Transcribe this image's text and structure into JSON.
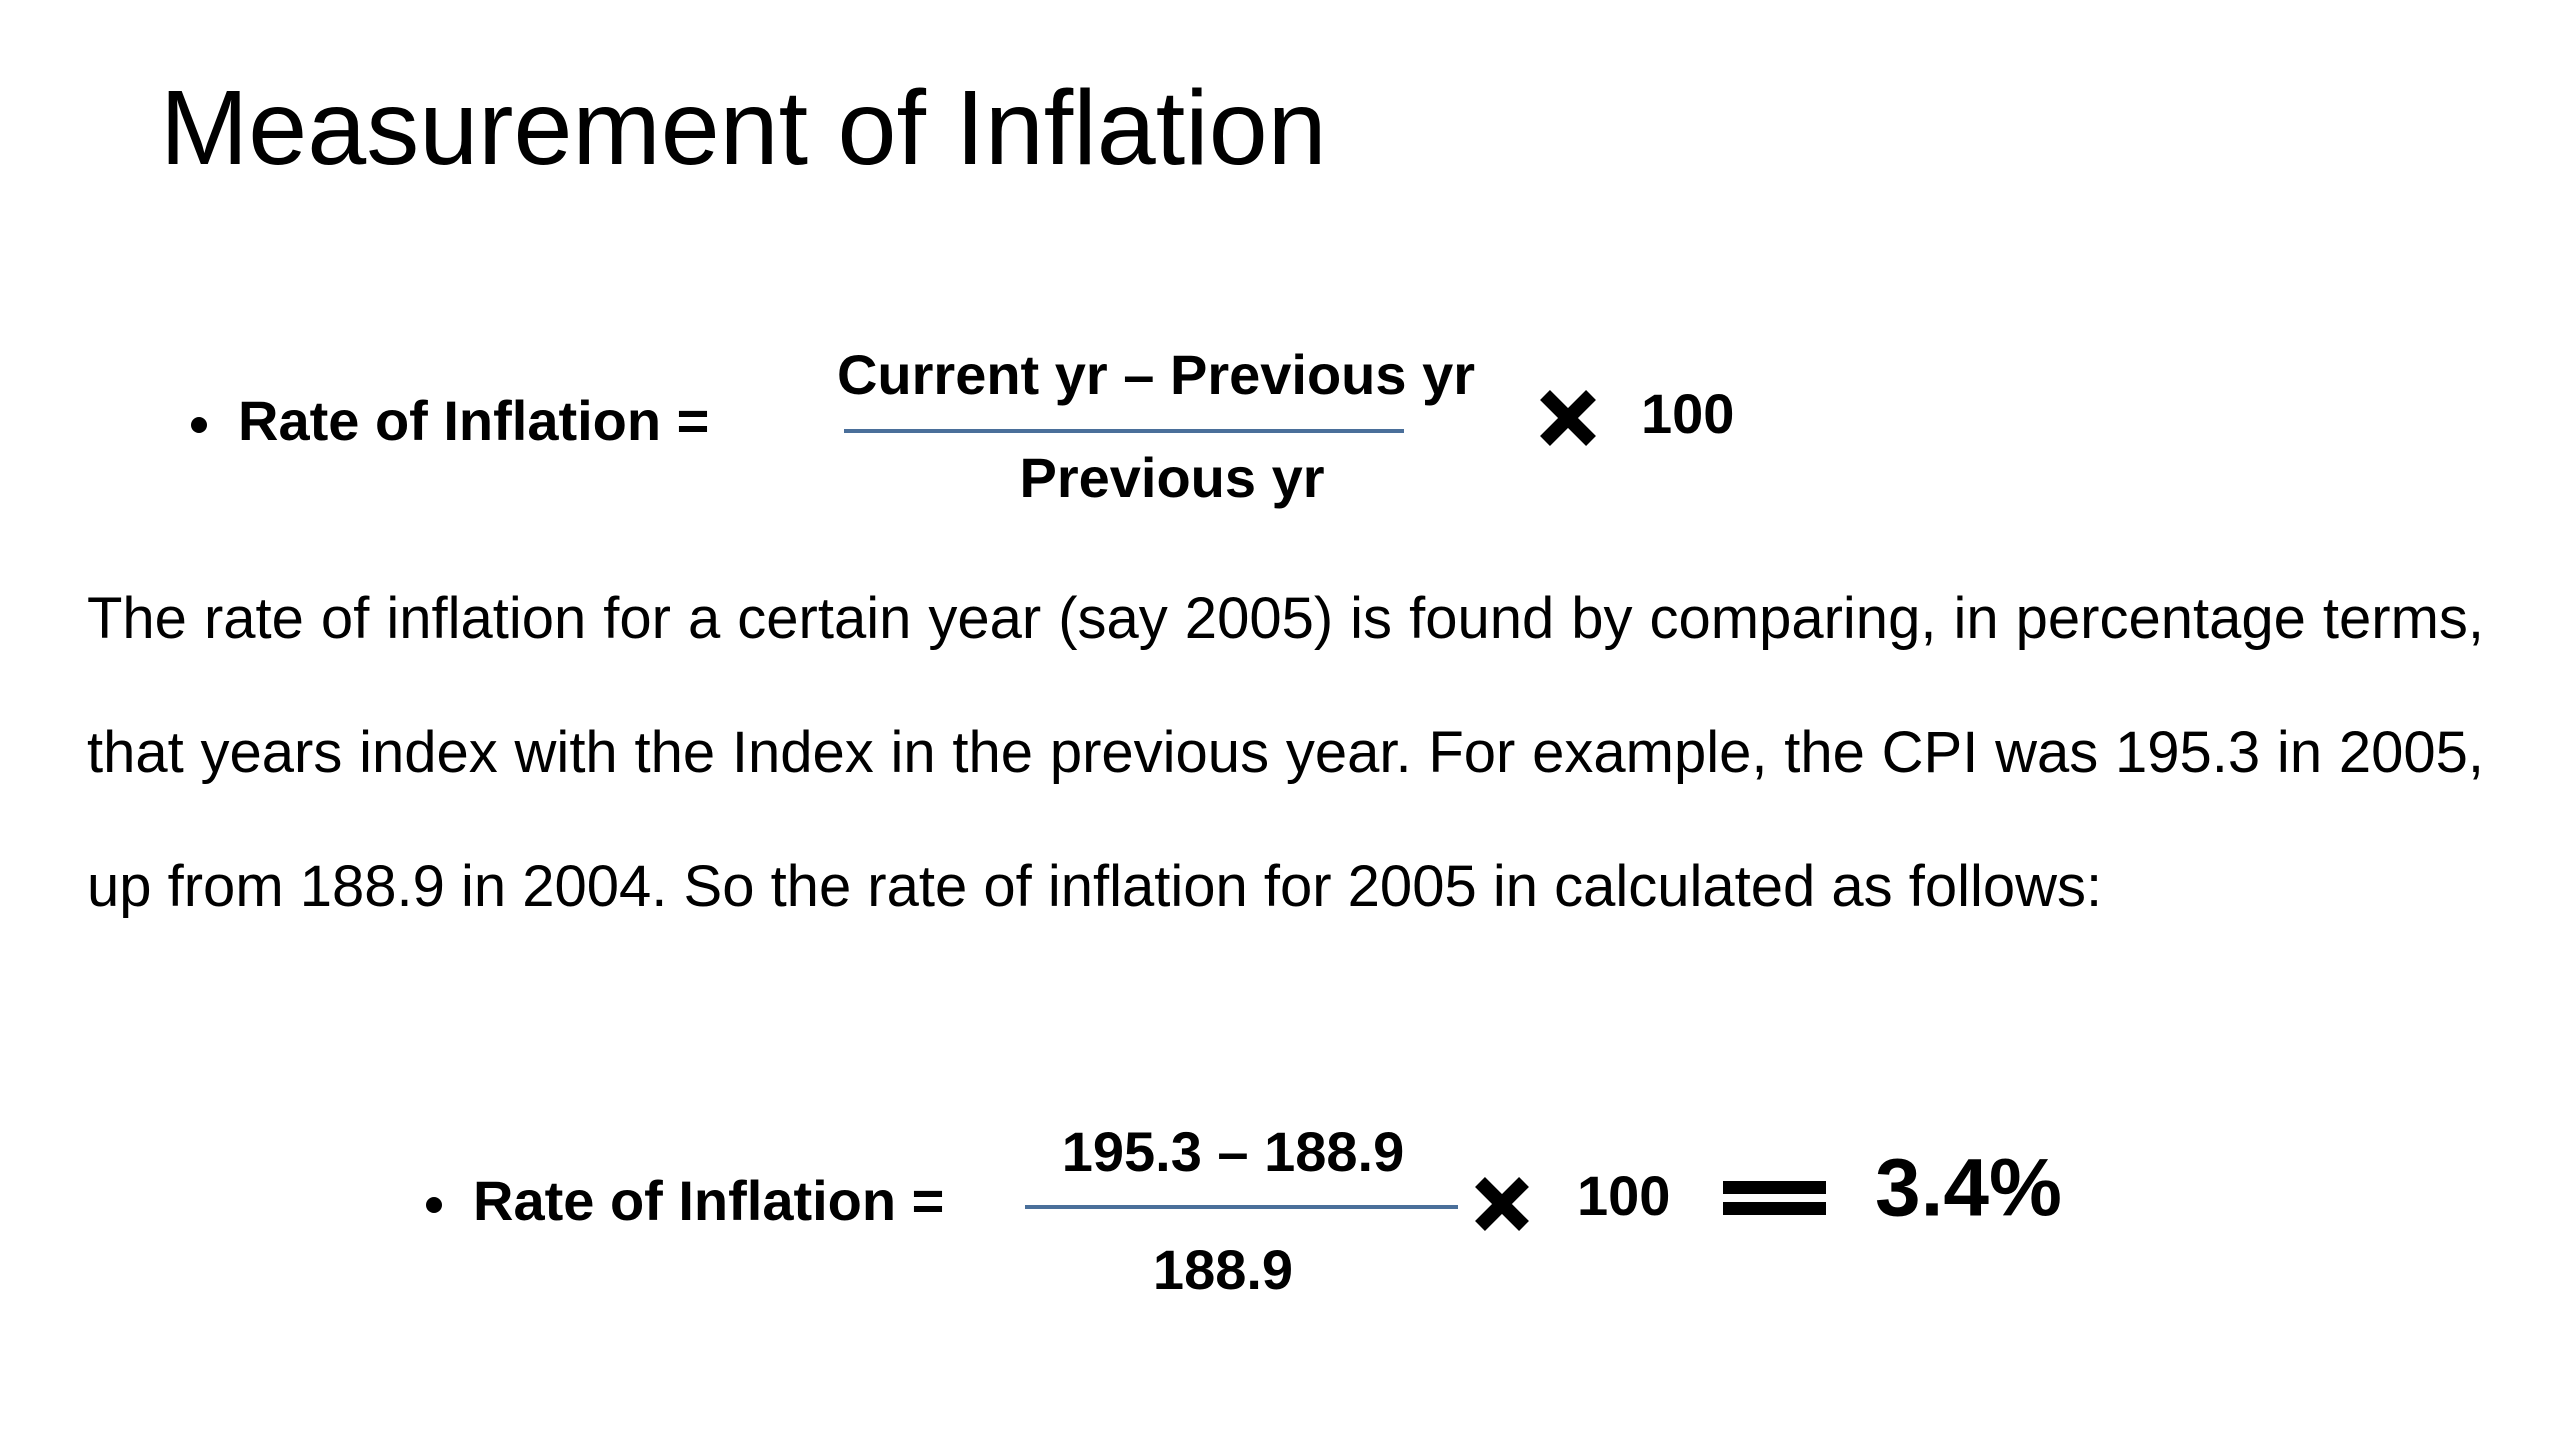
{
  "title": "Measurement of Inflation",
  "formula_general": {
    "label": "Rate of Inflation =",
    "numerator": "Current yr – Previous yr",
    "denominator": "Previous yr",
    "multiplier": "100"
  },
  "paragraph": "The rate of inflation for a certain year (say 2005) is found by comparing, in percentage terms, that years index with the Index in the previous year. For example, the CPI was 195.3 in 2005, up from 188.9 in 2004. So the rate of inflation for 2005 in calculated as follows:",
  "formula_example": {
    "label": "Rate of Inflation =",
    "numerator": "195.3 – 188.9",
    "denominator": "188.9",
    "multiplier": "100",
    "result": "3.4%"
  }
}
